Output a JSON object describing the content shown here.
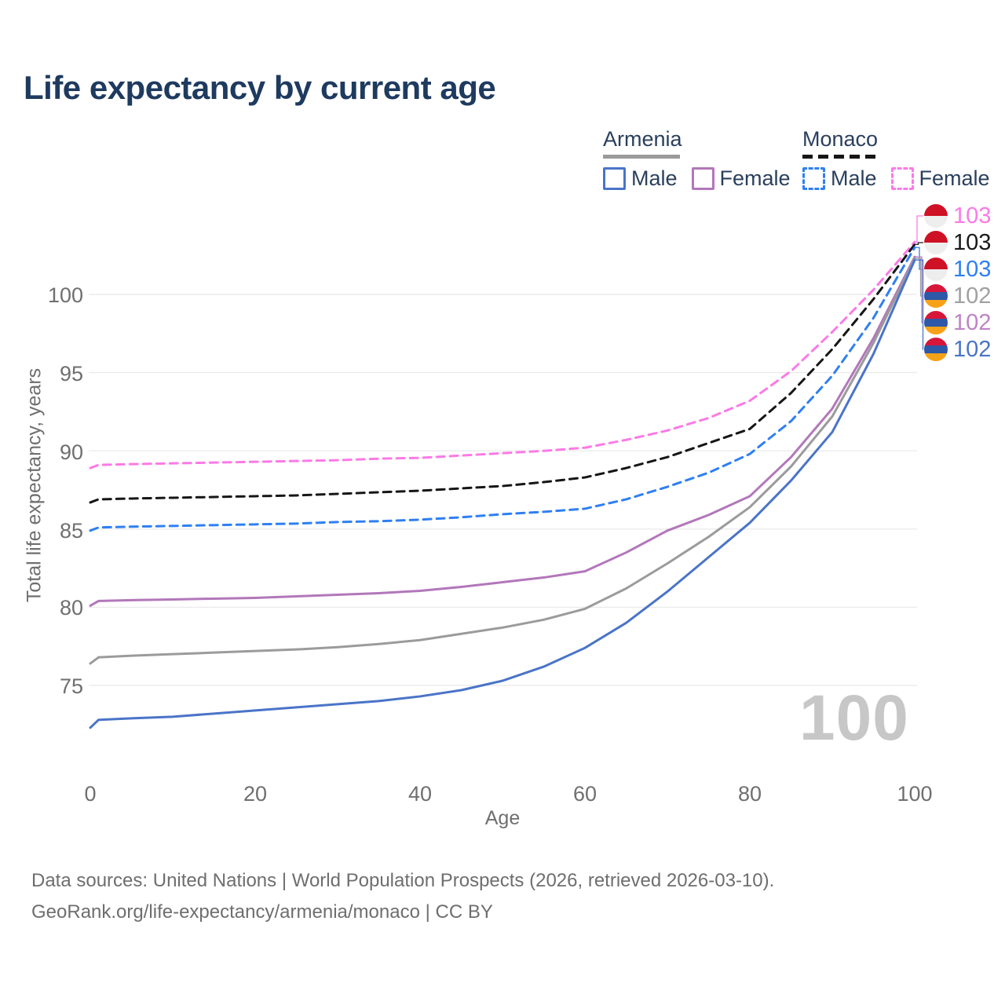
{
  "page": {
    "title": "Life expectancy by current age"
  },
  "legend": {
    "groups": [
      {
        "country": "Armenia",
        "line_style": "solid",
        "underline_color": "#9a9a9a",
        "items": [
          {
            "label": "Male",
            "series": "armenia_male",
            "color": "#4a74c8"
          },
          {
            "label": "Female",
            "series": "armenia_female",
            "color": "#b277ba"
          }
        ]
      },
      {
        "country": "Monaco",
        "line_style": "dashed",
        "underline_color": "#161616",
        "items": [
          {
            "label": "Male",
            "series": "monaco_male",
            "color": "#2f7ff2"
          },
          {
            "label": "Female",
            "series": "monaco_female",
            "color": "#fb7ae6"
          }
        ]
      }
    ]
  },
  "chart_data": {
    "type": "line",
    "title": "Life expectancy by current age",
    "xlabel": "Age",
    "ylabel": "Total life expectancy, years",
    "xlim": [
      0,
      100
    ],
    "ylim": [
      71,
      104
    ],
    "x_ticks": [
      0,
      20,
      40,
      60,
      80,
      100
    ],
    "y_ticks": [
      75,
      80,
      85,
      90,
      95,
      100
    ],
    "grid": "horizontal-only",
    "gridline_color": "#ebebeb",
    "x": [
      0,
      1,
      5,
      10,
      15,
      20,
      25,
      30,
      35,
      40,
      45,
      50,
      55,
      60,
      65,
      70,
      75,
      80,
      85,
      90,
      95,
      100
    ],
    "series": [
      {
        "id": "monaco_female",
        "country": "Monaco",
        "sex": "Female",
        "color": "#fb7ae6",
        "dash": true,
        "values": [
          88.9,
          89.1,
          89.15,
          89.2,
          89.25,
          89.3,
          89.35,
          89.4,
          89.5,
          89.55,
          89.7,
          89.85,
          90.0,
          90.2,
          90.7,
          91.3,
          92.1,
          93.2,
          95.1,
          97.6,
          100.3,
          103.35
        ]
      },
      {
        "id": "monaco_both",
        "country": "Monaco",
        "sex": "Both sexes",
        "color": "#161616",
        "dash": true,
        "values": [
          86.7,
          86.9,
          86.95,
          87.0,
          87.05,
          87.1,
          87.15,
          87.25,
          87.35,
          87.45,
          87.6,
          87.75,
          88.0,
          88.3,
          88.9,
          89.6,
          90.5,
          91.4,
          93.7,
          96.5,
          99.7,
          103.2
        ]
      },
      {
        "id": "monaco_male",
        "country": "Monaco",
        "sex": "Male",
        "color": "#2f7ff2",
        "dash": true,
        "values": [
          84.9,
          85.1,
          85.15,
          85.2,
          85.25,
          85.3,
          85.35,
          85.45,
          85.5,
          85.6,
          85.75,
          85.95,
          86.1,
          86.3,
          86.9,
          87.7,
          88.6,
          89.8,
          91.9,
          94.8,
          98.5,
          103.0
        ]
      },
      {
        "id": "armenia_female",
        "country": "Armenia",
        "sex": "Female",
        "color": "#b277ba",
        "dash": false,
        "values": [
          80.1,
          80.4,
          80.45,
          80.5,
          80.55,
          80.6,
          80.7,
          80.8,
          80.9,
          81.05,
          81.3,
          81.6,
          81.9,
          82.3,
          83.5,
          84.9,
          85.9,
          87.1,
          89.6,
          92.7,
          97.2,
          102.4
        ]
      },
      {
        "id": "armenia_both",
        "country": "Armenia",
        "sex": "Both sexes",
        "color": "#9b9b9b",
        "dash": false,
        "values": [
          76.4,
          76.8,
          76.9,
          77.0,
          77.1,
          77.2,
          77.3,
          77.45,
          77.65,
          77.9,
          78.3,
          78.7,
          79.2,
          79.9,
          81.2,
          82.8,
          84.5,
          86.4,
          89.0,
          92.2,
          96.9,
          102.3
        ]
      },
      {
        "id": "armenia_male",
        "country": "Armenia",
        "sex": "Male",
        "color": "#4a74c8",
        "dash": false,
        "values": [
          72.3,
          72.8,
          72.9,
          73.0,
          73.2,
          73.4,
          73.6,
          73.8,
          74.0,
          74.3,
          74.7,
          75.3,
          76.2,
          77.4,
          79.0,
          81.0,
          83.2,
          85.4,
          88.1,
          91.2,
          96.2,
          102.2
        ]
      }
    ]
  },
  "end_labels": [
    {
      "value": 103,
      "series": "monaco_female",
      "flag": "monaco",
      "color": "#fb7ae6"
    },
    {
      "value": 103,
      "series": "monaco_both",
      "flag": "monaco",
      "color": "#1a1a1a"
    },
    {
      "value": 103,
      "series": "monaco_male",
      "flag": "monaco",
      "color": "#2f7ff2"
    },
    {
      "value": 102,
      "series": "armenia_both",
      "flag": "armenia",
      "color": "#a0a0a0"
    },
    {
      "value": 102,
      "series": "armenia_female",
      "flag": "armenia",
      "color": "#bd84c4"
    },
    {
      "value": 102,
      "series": "armenia_male",
      "flag": "armenia",
      "color": "#4a74c8"
    }
  ],
  "age_counter": "100",
  "footer": {
    "line1": "Data sources: United Nations | World Population Prospects (2026, retrieved 2026-03-10).",
    "line2": "GeoRank.org/life-expectancy/armenia/monaco | CC BY"
  }
}
